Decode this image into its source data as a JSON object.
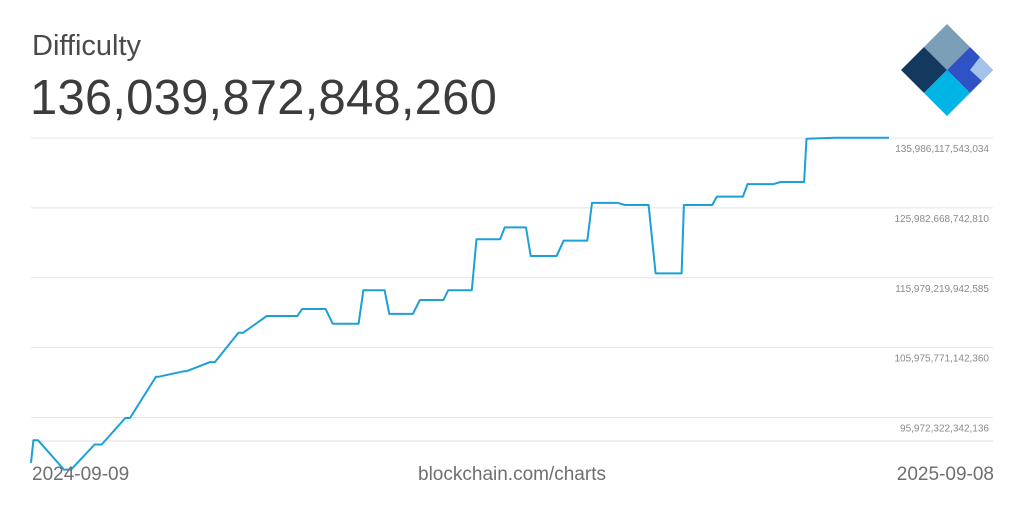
{
  "header": {
    "title": "Difficulty",
    "value": "136,039,872,848,260"
  },
  "footer": {
    "start_date": "2024-09-09",
    "source": "blockchain.com/charts",
    "end_date": "2025-09-08"
  },
  "logo": {
    "icon": "blockchain-logo-icon",
    "colors": [
      "#13395e",
      "#7a9fb6",
      "#2f52c4",
      "#00b4e6",
      "#b8d7ef"
    ]
  },
  "chart_data": {
    "type": "line",
    "title": "Difficulty",
    "x_range": [
      "2024-09-09",
      "2025-09-08"
    ],
    "y_ticks": [
      {
        "value": 95972322342136,
        "label": "95,972,322,342,136"
      },
      {
        "value": 105975771142360,
        "label": "105,975,771,142,360"
      },
      {
        "value": 115979219942585,
        "label": "115,979,219,942,585"
      },
      {
        "value": 125982668742810,
        "label": "125,982,668,742,810"
      },
      {
        "value": 135986117543034,
        "label": "135,986,117,543,034"
      }
    ],
    "ylim": [
      92600000000000,
      136000000000000
    ],
    "grid": true,
    "line_color": "#1ba0d8",
    "series": [
      {
        "x": [
          "2024-09-09",
          "2024-09-10",
          "2024-09-12",
          "2024-09-23",
          "2024-09-26",
          "2024-10-06",
          "2024-10-09",
          "2024-10-19",
          "2024-10-21",
          "2024-11-01",
          "2024-11-02",
          "2024-11-13",
          "2024-11-14",
          "2024-11-24",
          "2024-11-26",
          "2024-12-06",
          "2024-12-08",
          "2024-12-18",
          "2024-12-20",
          "2024-12-31",
          "2025-01-02",
          "2025-01-12",
          "2025-01-15",
          "2025-01-26",
          "2025-01-28",
          "2025-02-06",
          "2025-02-08",
          "2025-02-18",
          "2025-02-21",
          "2025-03-03",
          "2025-03-05",
          "2025-03-15",
          "2025-03-17",
          "2025-03-27",
          "2025-03-29",
          "2025-04-07",
          "2025-04-09",
          "2025-04-20",
          "2025-04-23",
          "2025-05-03",
          "2025-05-05",
          "2025-05-16",
          "2025-05-19",
          "2025-05-29",
          "2025-06-01",
          "2025-06-12",
          "2025-06-13",
          "2025-06-25",
          "2025-06-27",
          "2025-07-08",
          "2025-07-10",
          "2025-07-21",
          "2025-07-24",
          "2025-08-03",
          "2025-08-04",
          "2025-08-16",
          "2025-08-28",
          "2025-08-29",
          "2025-09-08"
        ],
        "y": [
          89470000000000,
          92700000000000,
          92700000000000,
          88500000000000,
          88500000000000,
          92100000000000,
          92100000000000,
          95900000000000,
          95900000000000,
          101800000000000,
          101800000000000,
          102600000000000,
          102600000000000,
          103900000000000,
          103900000000000,
          108100000000000,
          108100000000000,
          110500000000000,
          110500000000000,
          110500000000000,
          111500000000000,
          111500000000000,
          109400000000000,
          109400000000000,
          114200000000000,
          114200000000000,
          110800000000000,
          110800000000000,
          112800000000000,
          112800000000000,
          114200000000000,
          114200000000000,
          121500000000000,
          121500000000000,
          123200000000000,
          123200000000000,
          119100000000000,
          119100000000000,
          121300000000000,
          121300000000000,
          126700000000000,
          126700000000000,
          126400000000000,
          126400000000000,
          116600000000000,
          116600000000000,
          126400000000000,
          126400000000000,
          127600000000000,
          127600000000000,
          129400000000000,
          129400000000000,
          129700000000000,
          129700000000000,
          135900000000000,
          136040000000000,
          136040000000000,
          136040000000000,
          136040000000000
        ]
      }
    ]
  }
}
